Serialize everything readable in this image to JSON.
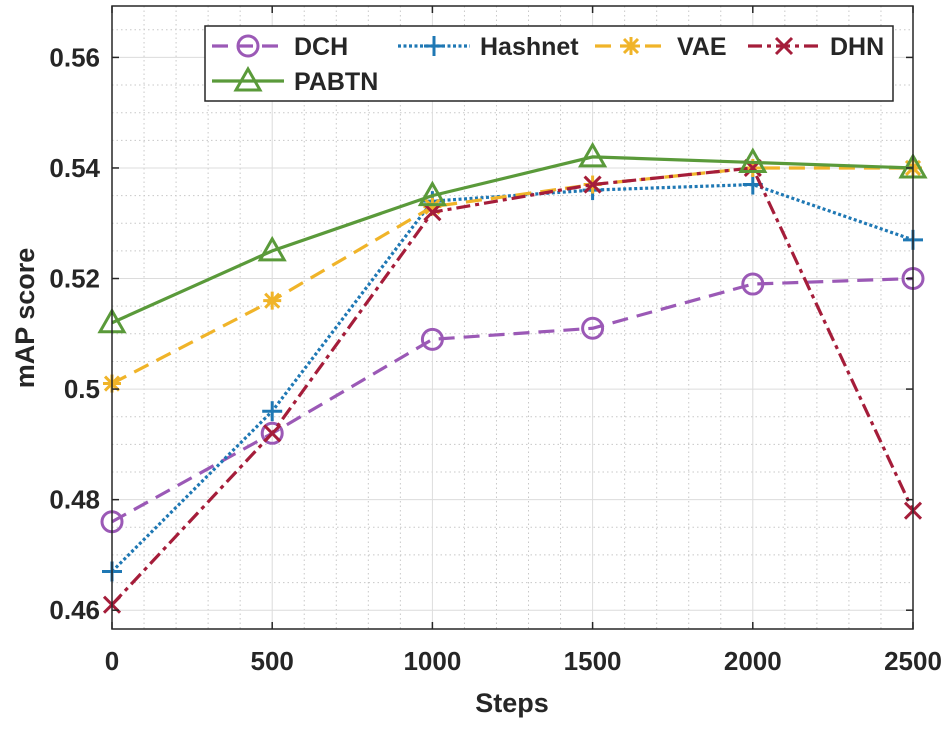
{
  "chart_data": {
    "type": "line",
    "title": "",
    "xlabel": "Steps",
    "ylabel": "mAP score",
    "x": [
      0,
      500,
      1000,
      1500,
      2000,
      2500
    ],
    "xlim": [
      0,
      2500
    ],
    "ylim": [
      0.4566,
      0.5693
    ],
    "xticks": [
      0,
      500,
      1000,
      1500,
      2000,
      2500
    ],
    "xtick_labels": [
      "0",
      "500",
      "1000",
      "1500",
      "2000",
      "2500"
    ],
    "yticks": [
      0.46,
      0.48,
      0.5,
      0.52,
      0.54,
      0.56
    ],
    "ytick_labels": [
      "0.46",
      "0.48",
      "0.5",
      "0.52",
      "0.54",
      "0.56"
    ],
    "grid": true,
    "minor_grid": true,
    "legend_position": "top",
    "series": [
      {
        "name": "DCH",
        "color": "#9b59b6",
        "marker": "circle",
        "dash": "dashed",
        "values": [
          0.476,
          0.492,
          0.509,
          0.511,
          0.519,
          0.52
        ]
      },
      {
        "name": "Hashnet",
        "color": "#1f78b4",
        "marker": "plus",
        "dash": "dotted",
        "values": [
          0.467,
          0.496,
          0.534,
          0.536,
          0.537,
          0.527
        ]
      },
      {
        "name": "VAE",
        "color": "#f0b429",
        "marker": "asterisk",
        "dash": "dashed",
        "values": [
          0.501,
          0.516,
          0.533,
          0.537,
          0.54,
          0.54
        ]
      },
      {
        "name": "DHN",
        "color": "#a51d3a",
        "marker": "x",
        "dash": "dashdot",
        "values": [
          0.461,
          0.492,
          0.532,
          0.537,
          0.54,
          0.478
        ]
      },
      {
        "name": "PABTN",
        "color": "#5a9a3a",
        "marker": "triangle",
        "dash": "solid",
        "values": [
          0.512,
          0.525,
          0.535,
          0.542,
          0.541,
          0.54
        ]
      }
    ]
  }
}
